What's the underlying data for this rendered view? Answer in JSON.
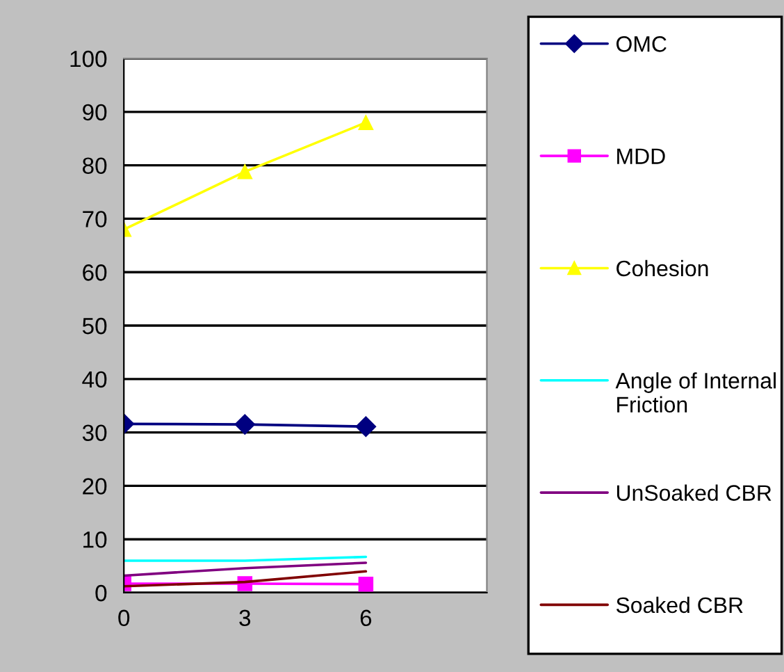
{
  "chart_data": {
    "type": "line",
    "x": [
      0,
      3,
      6
    ],
    "xlim": [
      0,
      9
    ],
    "xticks": [
      0,
      3,
      6,
      {
        "value": 9,
        "label": null
      }
    ],
    "ylim": [
      0,
      100
    ],
    "yticks": [
      0,
      10,
      20,
      30,
      40,
      50,
      60,
      70,
      80,
      90,
      100
    ],
    "grid": "y",
    "legend": "right",
    "series": [
      {
        "name": "OMC",
        "color": "#000080",
        "marker": "diamond",
        "values": [
          31.6,
          31.5,
          31.1
        ]
      },
      {
        "name": "MDD",
        "color": "#ff00ff",
        "marker": "square",
        "values": [
          1.7,
          1.7,
          1.6
        ]
      },
      {
        "name": "Cohesion",
        "color": "#ffff00",
        "marker": "triangle",
        "values": [
          68,
          78.8,
          88
        ]
      },
      {
        "name": "Angle of Internal Friction",
        "color": "#00ffff",
        "marker": "none",
        "values": [
          6,
          6,
          6.7
        ]
      },
      {
        "name": "UnSoaked CBR",
        "color": "#800080",
        "marker": "none",
        "values": [
          3.2,
          4.6,
          5.6
        ]
      },
      {
        "name": "Soaked CBR",
        "color": "#800000",
        "marker": "none",
        "values": [
          1.2,
          2,
          4
        ]
      }
    ]
  }
}
